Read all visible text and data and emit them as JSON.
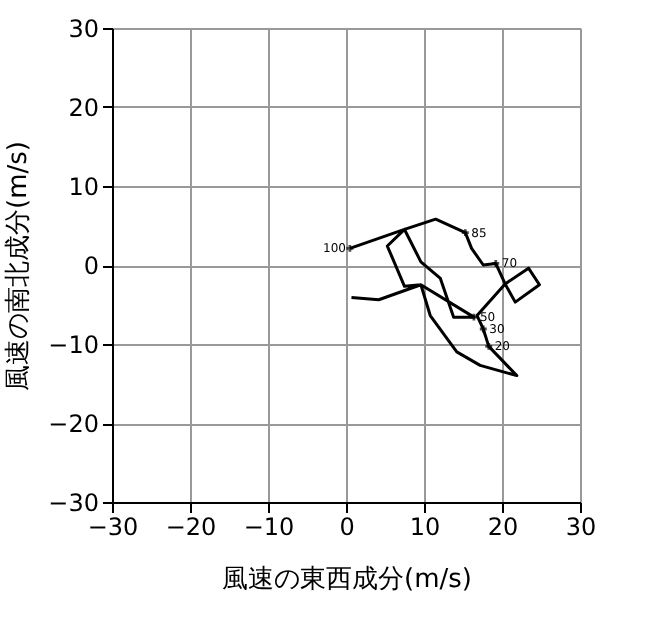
{
  "chart_data": {
    "type": "line",
    "xlabel": "風速の東西成分(m/s)",
    "ylabel": "風速の南北成分(m/s)",
    "x": [
      0.5,
      7.5,
      11.5,
      15.3,
      16.1,
      17.6,
      19.2,
      20.4,
      23.4,
      24.8,
      21.7,
      20.4,
      16.8,
      17.6,
      18.3,
      21.9,
      17.2,
      14.2,
      10.8,
      9.6,
      7.5,
      5.3,
      7.5,
      9.6,
      12.1,
      13.8,
      16.4,
      9.6,
      4.2,
      0.7
    ],
    "series": [
      {
        "color": "#000000",
        "values": [
          2.1,
          4.5,
          5.8,
          4.1,
          2.1,
          0,
          0.2,
          -2.4,
          -0.4,
          -2.5,
          -4.7,
          -2.4,
          -6.4,
          -8.1,
          -10.3,
          -14.0,
          -12.7,
          -11.0,
          -6.4,
          -2.5,
          -2.7,
          2.4,
          4.5,
          0.4,
          -1.7,
          -6.6,
          -6.6,
          -2.5,
          -4.4,
          -4.1
        ]
      }
    ],
    "xlim": [
      -30,
      30
    ],
    "ylim": [
      -30,
      30
    ],
    "xticks": [
      -30,
      -20,
      -10,
      0,
      10,
      20,
      30
    ],
    "yticks": [
      -30,
      -20,
      -10,
      0,
      10,
      20,
      30
    ],
    "grid": true,
    "marker": "none",
    "annotations": [
      {
        "text": "100",
        "x": 0.5,
        "y": 2.1
      },
      {
        "text": "85",
        "x": 15.3,
        "y": 4.1
      },
      {
        "text": "70",
        "x": 19.2,
        "y": 0.2
      },
      {
        "text": "50",
        "x": 16.4,
        "y": -6.6
      },
      {
        "text": "30",
        "x": 17.6,
        "y": -8.1
      },
      {
        "text": "20",
        "x": 18.3,
        "y": -10.3
      }
    ]
  }
}
